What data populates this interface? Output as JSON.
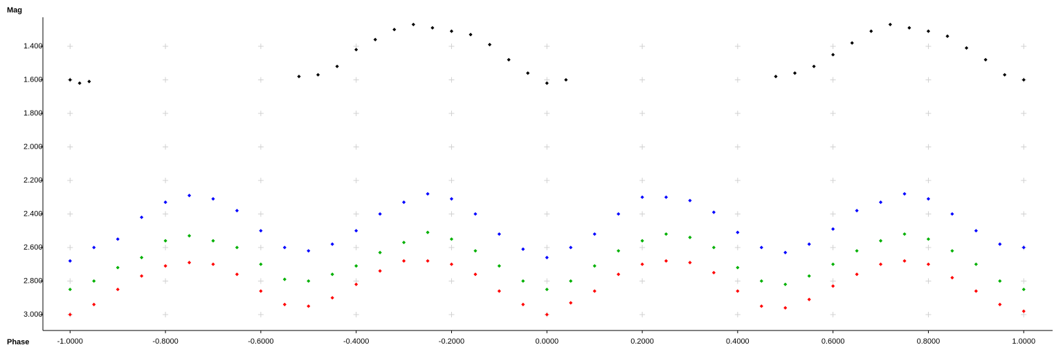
{
  "chart_data": {
    "type": "scatter",
    "y_axis_label": "Mag",
    "x_axis_label": "Phase",
    "xlim": [
      -1.057,
      1.06
    ],
    "ylim": [
      1.227,
      3.095
    ],
    "y_inverted": true,
    "grid": true,
    "xticks": [
      {
        "value": -1.0,
        "label": "-1.0000"
      },
      {
        "value": -0.8,
        "label": "-0.8000"
      },
      {
        "value": -0.6,
        "label": "-0.6000"
      },
      {
        "value": -0.4,
        "label": "-0.4000"
      },
      {
        "value": -0.2,
        "label": "-0.2000"
      },
      {
        "value": 0,
        "label": "0.0000"
      },
      {
        "value": 0.2,
        "label": "0.2000"
      },
      {
        "value": 0.4,
        "label": "0.4000"
      },
      {
        "value": 0.6,
        "label": "0.6000"
      },
      {
        "value": 0.8,
        "label": "0.8000"
      },
      {
        "value": 1.0,
        "label": "1.0000"
      }
    ],
    "yticks": [
      {
        "value": 1.4,
        "label": "1.400"
      },
      {
        "value": 1.6,
        "label": "1.600"
      },
      {
        "value": 1.8,
        "label": "1.800"
      },
      {
        "value": 2.0,
        "label": "2.000"
      },
      {
        "value": 2.2,
        "label": "2.200"
      },
      {
        "value": 2.4,
        "label": "2.400"
      },
      {
        "value": 2.6,
        "label": "2.600"
      },
      {
        "value": 2.8,
        "label": "2.800"
      },
      {
        "value": 3.0,
        "label": "3.000"
      }
    ],
    "series": [
      {
        "color": "#000000",
        "x": [
          -1.0,
          -0.98,
          -0.96,
          -0.52,
          -0.48,
          -0.44,
          -0.4,
          -0.36,
          -0.32,
          -0.28,
          -0.24,
          -0.2,
          -0.16,
          -0.12,
          -0.08,
          -0.04,
          0.0,
          0.04,
          0.48,
          0.52,
          0.56,
          0.6,
          0.64,
          0.68,
          0.72,
          0.76,
          0.8,
          0.84,
          0.88,
          0.92,
          0.96,
          1.0
        ],
        "values": [
          1.6,
          1.62,
          1.61,
          1.58,
          1.57,
          1.52,
          1.42,
          1.36,
          1.3,
          1.27,
          1.29,
          1.31,
          1.33,
          1.39,
          1.48,
          1.56,
          1.62,
          1.6,
          1.58,
          1.56,
          1.52,
          1.45,
          1.38,
          1.31,
          1.27,
          1.29,
          1.31,
          1.34,
          1.41,
          1.48,
          1.57,
          1.6
        ]
      },
      {
        "color": "#0000ff",
        "x": [
          -1.0,
          -0.95,
          -0.9,
          -0.85,
          -0.8,
          -0.75,
          -0.7,
          -0.65,
          -0.6,
          -0.55,
          -0.5,
          -0.45,
          -0.4,
          -0.35,
          -0.3,
          -0.25,
          -0.2,
          -0.15,
          -0.1,
          -0.05,
          0,
          0.05,
          0.1,
          0.15,
          0.2,
          0.25,
          0.3,
          0.35,
          0.4,
          0.45,
          0.5,
          0.55,
          0.6,
          0.65,
          0.7,
          0.75,
          0.8,
          0.85,
          0.9,
          0.95,
          1.0
        ],
        "values": [
          2.68,
          2.6,
          2.55,
          2.42,
          2.33,
          2.29,
          2.31,
          2.38,
          2.5,
          2.6,
          2.62,
          2.58,
          2.5,
          2.4,
          2.33,
          2.28,
          2.31,
          2.4,
          2.52,
          2.61,
          2.66,
          2.6,
          2.52,
          2.4,
          2.3,
          2.3,
          2.32,
          2.39,
          2.51,
          2.6,
          2.63,
          2.58,
          2.49,
          2.38,
          2.33,
          2.28,
          2.31,
          2.4,
          2.5,
          2.58,
          2.6
        ]
      },
      {
        "color": "#00b000",
        "x": [
          -1.0,
          -0.95,
          -0.9,
          -0.85,
          -0.8,
          -0.75,
          -0.7,
          -0.65,
          -0.6,
          -0.55,
          -0.5,
          -0.45,
          -0.4,
          -0.35,
          -0.3,
          -0.25,
          -0.2,
          -0.15,
          -0.1,
          -0.05,
          0,
          0.05,
          0.1,
          0.15,
          0.2,
          0.25,
          0.3,
          0.35,
          0.4,
          0.45,
          0.5,
          0.55,
          0.6,
          0.65,
          0.7,
          0.75,
          0.8,
          0.85,
          0.9,
          0.95,
          1.0
        ],
        "values": [
          2.85,
          2.8,
          2.72,
          2.66,
          2.56,
          2.53,
          2.56,
          2.6,
          2.7,
          2.79,
          2.8,
          2.76,
          2.71,
          2.63,
          2.57,
          2.51,
          2.55,
          2.62,
          2.71,
          2.8,
          2.85,
          2.8,
          2.71,
          2.62,
          2.56,
          2.52,
          2.54,
          2.6,
          2.72,
          2.8,
          2.82,
          2.77,
          2.7,
          2.62,
          2.56,
          2.52,
          2.55,
          2.62,
          2.7,
          2.8,
          2.85
        ]
      },
      {
        "color": "#ff0000",
        "x": [
          -1.0,
          -0.95,
          -0.9,
          -0.85,
          -0.8,
          -0.75,
          -0.7,
          -0.65,
          -0.6,
          -0.55,
          -0.5,
          -0.45,
          -0.4,
          -0.35,
          -0.3,
          -0.25,
          -0.2,
          -0.15,
          -0.1,
          -0.05,
          0,
          0.05,
          0.1,
          0.15,
          0.2,
          0.25,
          0.3,
          0.35,
          0.4,
          0.45,
          0.5,
          0.55,
          0.6,
          0.65,
          0.7,
          0.75,
          0.8,
          0.85,
          0.9,
          0.95,
          1.0
        ],
        "values": [
          3.0,
          2.94,
          2.85,
          2.77,
          2.71,
          2.69,
          2.7,
          2.76,
          2.86,
          2.94,
          2.95,
          2.9,
          2.82,
          2.74,
          2.68,
          2.68,
          2.7,
          2.76,
          2.86,
          2.94,
          3.0,
          2.93,
          2.86,
          2.76,
          2.7,
          2.68,
          2.69,
          2.75,
          2.86,
          2.95,
          2.96,
          2.91,
          2.83,
          2.76,
          2.7,
          2.68,
          2.7,
          2.78,
          2.86,
          2.94,
          2.98
        ]
      }
    ]
  }
}
